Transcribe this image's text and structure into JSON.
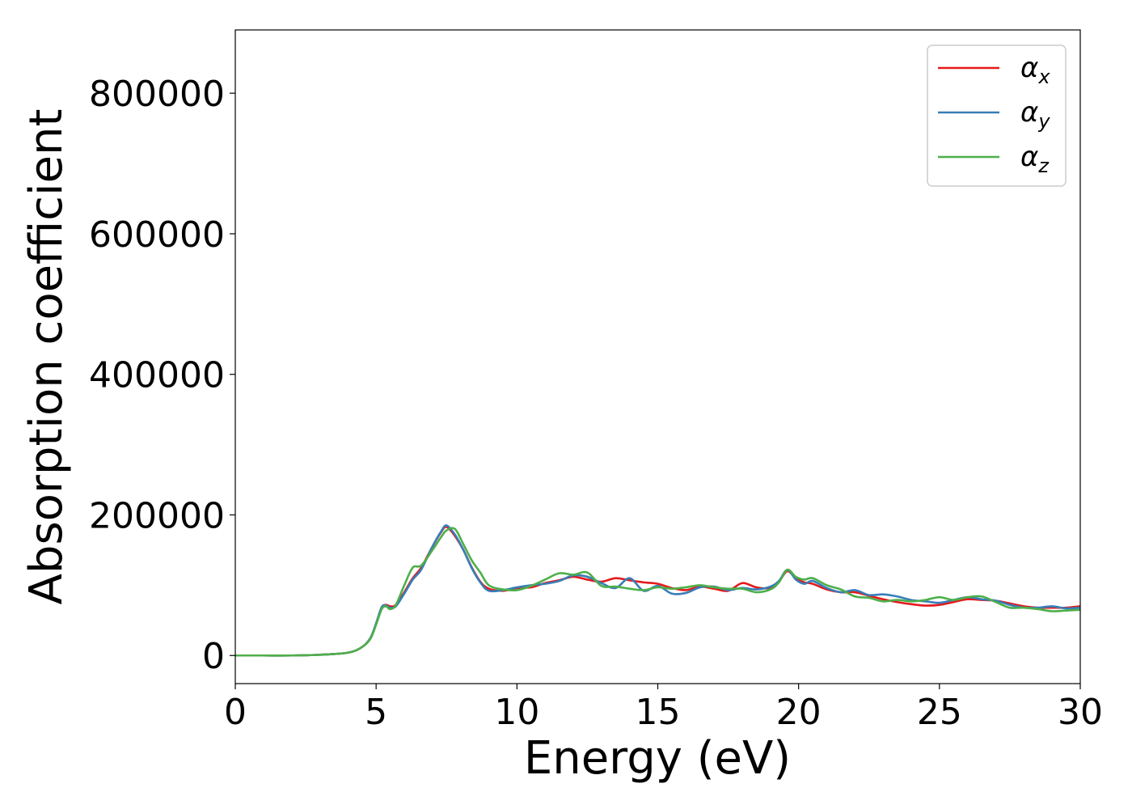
{
  "chart_data": {
    "type": "line",
    "title": "",
    "xlabel": "Energy (eV)",
    "ylabel": "Absorption coefficient",
    "xlim": [
      0,
      30
    ],
    "ylim": [
      -40000,
      890000
    ],
    "x_ticks": [
      "0",
      "5",
      "10",
      "15",
      "20",
      "25",
      "30"
    ],
    "y_ticks": [
      "0",
      "200000",
      "400000",
      "600000",
      "800000"
    ],
    "grid": false,
    "legend_position": "top-right",
    "legend": [
      {
        "symbol": "α",
        "sub": "x",
        "color": "#e41a1c"
      },
      {
        "symbol": "α",
        "sub": "y",
        "color": "#377eb8"
      },
      {
        "symbol": "α",
        "sub": "z",
        "color": "#4daf4a"
      }
    ],
    "series": [
      {
        "name": "αx",
        "color": "#e41a1c",
        "x": [
          0,
          1,
          2,
          3,
          4,
          4.5,
          4.8,
          5.0,
          5.2,
          5.35,
          5.5,
          5.7,
          6.0,
          6.3,
          6.6,
          7.0,
          7.3,
          7.5,
          7.8,
          8.1,
          8.4,
          8.7,
          9.0,
          9.5,
          10.0,
          10.5,
          11.0,
          11.5,
          12.0,
          12.5,
          13.0,
          13.5,
          14.0,
          14.5,
          15.0,
          15.5,
          16.0,
          16.5,
          17.0,
          17.5,
          18.0,
          18.5,
          19.0,
          19.3,
          19.6,
          19.9,
          20.2,
          20.5,
          21.0,
          21.5,
          22.0,
          22.5,
          23.0,
          23.5,
          24.0,
          24.5,
          25.0,
          25.5,
          26.0,
          26.5,
          27.0,
          27.5,
          28.0,
          28.5,
          29.0,
          29.5,
          30.0
        ],
        "y": [
          0,
          0,
          0,
          1000,
          4000,
          12000,
          25000,
          45000,
          68000,
          72000,
          70000,
          72000,
          90000,
          110000,
          125000,
          155000,
          175000,
          183000,
          170000,
          150000,
          125000,
          105000,
          95000,
          92000,
          96000,
          97000,
          103000,
          107000,
          112000,
          108000,
          105000,
          110000,
          107000,
          104000,
          102000,
          96000,
          93000,
          98000,
          95000,
          92000,
          103000,
          97000,
          96000,
          105000,
          120000,
          110000,
          104000,
          102000,
          94000,
          90000,
          90000,
          85000,
          80000,
          76000,
          73000,
          71000,
          72000,
          76000,
          80000,
          79000,
          78000,
          74000,
          70000,
          68000,
          68000,
          68000,
          70000
        ]
      },
      {
        "name": "αy",
        "color": "#377eb8",
        "x": [
          0,
          1,
          2,
          3,
          4,
          4.5,
          4.8,
          5.0,
          5.2,
          5.35,
          5.5,
          5.7,
          6.0,
          6.3,
          6.6,
          7.0,
          7.3,
          7.5,
          7.8,
          8.1,
          8.4,
          8.7,
          9.0,
          9.5,
          10.0,
          10.5,
          11.0,
          11.5,
          12.0,
          12.5,
          13.0,
          13.5,
          14.0,
          14.5,
          15.0,
          15.5,
          16.0,
          16.5,
          17.0,
          17.5,
          18.0,
          18.5,
          19.0,
          19.3,
          19.6,
          19.9,
          20.2,
          20.5,
          21.0,
          21.5,
          22.0,
          22.5,
          23.0,
          23.5,
          24.0,
          24.5,
          25.0,
          25.5,
          26.0,
          26.5,
          27.0,
          27.5,
          28.0,
          28.5,
          29.0,
          29.5,
          30.0
        ],
        "y": [
          0,
          0,
          0,
          1000,
          4000,
          12000,
          25000,
          46000,
          69000,
          71000,
          68000,
          70000,
          88000,
          108000,
          122000,
          155000,
          176000,
          185000,
          172000,
          150000,
          124000,
          104000,
          92000,
          93000,
          97000,
          100000,
          102000,
          106000,
          114000,
          112000,
          103000,
          96000,
          110000,
          92000,
          99000,
          88000,
          89000,
          97000,
          98000,
          93000,
          96000,
          94000,
          98000,
          106000,
          122000,
          108000,
          102000,
          106000,
          96000,
          90000,
          93000,
          86000,
          87000,
          84000,
          79000,
          77000,
          75000,
          79000,
          83000,
          80000,
          78000,
          72000,
          68000,
          68000,
          70000,
          67000,
          68000
        ]
      },
      {
        "name": "αz",
        "color": "#4daf4a",
        "x": [
          0,
          1,
          2,
          3,
          4,
          4.5,
          4.8,
          5.0,
          5.2,
          5.35,
          5.5,
          5.7,
          6.0,
          6.3,
          6.6,
          7.0,
          7.3,
          7.5,
          7.8,
          8.1,
          8.4,
          8.7,
          9.0,
          9.5,
          10.0,
          10.5,
          11.0,
          11.5,
          12.0,
          12.5,
          13.0,
          13.5,
          14.0,
          14.5,
          15.0,
          15.5,
          16.0,
          16.5,
          17.0,
          17.5,
          18.0,
          18.5,
          19.0,
          19.3,
          19.6,
          19.9,
          20.2,
          20.5,
          21.0,
          21.5,
          22.0,
          22.5,
          23.0,
          23.5,
          24.0,
          24.5,
          25.0,
          25.5,
          26.0,
          26.5,
          27.0,
          27.5,
          28.0,
          28.5,
          29.0,
          29.5,
          30.0
        ],
        "y": [
          0,
          0,
          0,
          1000,
          4000,
          12000,
          24000,
          44000,
          66000,
          70000,
          66000,
          72000,
          100000,
          125000,
          128000,
          150000,
          168000,
          178000,
          180000,
          158000,
          135000,
          118000,
          100000,
          94000,
          93000,
          99000,
          108000,
          117000,
          115000,
          118000,
          99000,
          98000,
          95000,
          93000,
          97000,
          95000,
          97000,
          100000,
          97000,
          95000,
          95000,
          90000,
          94000,
          104000,
          122000,
          112000,
          108000,
          110000,
          100000,
          94000,
          84000,
          82000,
          77000,
          79000,
          77000,
          79000,
          83000,
          79000,
          83000,
          84000,
          76000,
          68000,
          68000,
          66000,
          63000,
          64000,
          65000
        ]
      }
    ]
  }
}
